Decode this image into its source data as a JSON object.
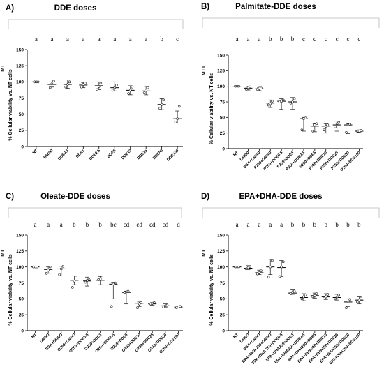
{
  "chart_data": [
    {
      "type": "scatter",
      "panel_label": "A)",
      "title": "DDE doses",
      "ylabel": "% Cellular viability vs. NT cells",
      "ylabel_prefix": "MTT",
      "ylim": [
        0,
        150
      ],
      "yticks": [
        0,
        25,
        50,
        75,
        100,
        125,
        150
      ],
      "categories": [
        "NT",
        "DMSO",
        "DDE0.5",
        "DDE1",
        "DDE2.5",
        "DDE5",
        "DDE10",
        "DDE25",
        "DDE50",
        "DDE100"
      ],
      "significance_letters": [
        "a",
        "a",
        "a",
        "a",
        "a",
        "a",
        "a",
        "a",
        "b",
        "c"
      ],
      "means": [
        100,
        96,
        96,
        95,
        94,
        91,
        87,
        86,
        65,
        43
      ],
      "errors": [
        [
          100,
          101
        ],
        [
          92,
          100
        ],
        [
          90,
          103
        ],
        [
          91,
          99
        ],
        [
          88,
          100
        ],
        [
          86,
          100
        ],
        [
          80,
          94
        ],
        [
          80,
          93
        ],
        [
          57,
          74
        ],
        [
          36,
          55
        ]
      ],
      "points": [
        [
          100,
          100,
          100
        ],
        [
          91,
          97,
          101
        ],
        [
          92,
          96,
          100
        ],
        [
          92,
          96,
          98
        ],
        [
          88,
          93,
          98
        ],
        [
          87,
          91,
          95
        ],
        [
          82,
          87,
          92
        ],
        [
          83,
          87,
          91
        ],
        [
          59,
          65,
          72
        ],
        [
          38,
          43,
          62
        ]
      ],
      "grid": false
    },
    {
      "type": "scatter",
      "panel_label": "B)",
      "title": "Palmitate-DDE doses",
      "ylabel": "% Cellular viability vs. NT cells",
      "ylabel_prefix": "MTT",
      "ylim": [
        0,
        150
      ],
      "yticks": [
        0,
        25,
        50,
        75,
        100,
        125,
        150
      ],
      "categories": [
        "NT",
        "DMSO",
        "BSA+DMSO",
        "P250+DMSO",
        "P250+DDE0.5",
        "P250+DDE1",
        "P250+DDE2.5",
        "P250+DDE5",
        "P250+DDE10",
        "P250+DDE25",
        "P250+DDE50",
        "P250+DDE100"
      ],
      "significance_letters": [
        "a",
        "a",
        "a",
        "b",
        "b",
        "b",
        "c",
        "c",
        "c",
        "c",
        "c",
        "c"
      ],
      "means": [
        100,
        97,
        96,
        73,
        76,
        75,
        48,
        36,
        36,
        38,
        38,
        28
      ],
      "errors": [
        [
          100,
          100
        ],
        [
          94,
          100
        ],
        [
          93,
          98
        ],
        [
          66,
          78
        ],
        [
          63,
          80
        ],
        [
          63,
          82
        ],
        [
          28,
          50
        ],
        [
          27,
          40
        ],
        [
          25,
          40
        ],
        [
          28,
          44
        ],
        [
          24,
          40
        ],
        [
          26,
          30
        ]
      ],
      "points": [
        [
          100,
          100,
          100
        ],
        [
          95,
          98,
          99
        ],
        [
          95,
          97,
          97
        ],
        [
          70,
          72,
          76
        ],
        [
          75,
          76,
          78
        ],
        [
          73,
          75,
          80
        ],
        [
          30,
          48,
          49
        ],
        [
          28,
          38,
          40
        ],
        [
          30,
          36,
          38
        ],
        [
          35,
          40,
          42
        ],
        [
          26,
          38,
          39
        ],
        [
          28,
          28,
          29
        ]
      ],
      "grid": false
    },
    {
      "type": "scatter",
      "panel_label": "C)",
      "title": "Oleate-DDE doses",
      "ylabel": "% Cellular viability vs. NT cells",
      "ylabel_prefix": "MTT",
      "ylim": [
        0,
        150
      ],
      "yticks": [
        0,
        25,
        50,
        75,
        100,
        125,
        150
      ],
      "categories": [
        "NT",
        "DMSO",
        "BSA+DMSO",
        "O250+DMSO",
        "O250+DDE0.5",
        "O250+DDE1",
        "O250+DDE2.5",
        "O250+DDE5",
        "O250+DDE10",
        "O250+DDE25",
        "O250+DDE50",
        "O250+DDE100"
      ],
      "significance_letters": [
        "a",
        "a",
        "a",
        "b",
        "b",
        "b",
        "bc",
        "cd",
        "cd",
        "cd",
        "cd",
        "d"
      ],
      "means": [
        100,
        96,
        97,
        79,
        78,
        79,
        73,
        60,
        43,
        42,
        39,
        37
      ],
      "errors": [
        [
          100,
          100
        ],
        [
          90,
          100
        ],
        [
          86,
          101
        ],
        [
          72,
          86
        ],
        [
          70,
          84
        ],
        [
          72,
          85
        ],
        [
          50,
          76
        ],
        [
          42,
          62
        ],
        [
          38,
          45
        ],
        [
          40,
          44
        ],
        [
          37,
          42
        ],
        [
          36,
          39
        ]
      ],
      "points": [
        [
          100,
          100,
          100
        ],
        [
          90,
          95,
          100
        ],
        [
          88,
          97,
          101
        ],
        [
          68,
          78,
          84
        ],
        [
          76,
          79,
          80
        ],
        [
          80,
          81,
          84
        ],
        [
          38,
          73,
          75
        ],
        [
          60,
          61,
          62
        ],
        [
          36,
          42,
          44
        ],
        [
          42,
          43,
          44
        ],
        [
          37,
          39,
          40
        ],
        [
          36,
          37,
          38
        ]
      ],
      "grid": false
    },
    {
      "type": "scatter",
      "panel_label": "D)",
      "title": "EPA+DHA-DDE doses",
      "ylabel": "% Cellular viability vs. NT cells",
      "ylabel_prefix": "MTT",
      "ylim": [
        0,
        150
      ],
      "yticks": [
        0,
        25,
        50,
        75,
        100,
        125,
        150
      ],
      "categories": [
        "NT",
        "DMSO",
        "BSA+DMSO",
        "EPA+DHA 250+DMSO",
        "EPA+DHA 250+DDE0.5",
        "EPA+DHA250+DDE1",
        "EPA+DHA250+DDE2.5",
        "EPA+DHA250+DDE5",
        "EPA+DHA250+DDE10",
        "EPA+DHA250+DDE25",
        "EPA+DHA250+DDE50",
        "EPA+DHA250+DDE100"
      ],
      "significance_letters": [
        "a",
        "a",
        "a",
        "a",
        "a",
        "b",
        "b",
        "b",
        "b",
        "b",
        "b",
        "b"
      ],
      "means": [
        100,
        98,
        91,
        100,
        99,
        59,
        52,
        55,
        53,
        52,
        45,
        48
      ],
      "errors": [
        [
          100,
          100
        ],
        [
          96,
          102
        ],
        [
          88,
          95
        ],
        [
          88,
          112
        ],
        [
          85,
          110
        ],
        [
          57,
          64
        ],
        [
          47,
          58
        ],
        [
          51,
          59
        ],
        [
          49,
          58
        ],
        [
          48,
          57
        ],
        [
          38,
          50
        ],
        [
          42,
          53
        ]
      ],
      "points": [
        [
          100,
          100,
          100
        ],
        [
          97,
          99,
          101
        ],
        [
          89,
          91,
          94
        ],
        [
          84,
          100,
          110
        ],
        [
          85,
          100,
          108
        ],
        [
          58,
          60,
          62
        ],
        [
          50,
          53,
          56
        ],
        [
          53,
          55,
          58
        ],
        [
          51,
          53,
          57
        ],
        [
          50,
          53,
          56
        ],
        [
          36,
          45,
          49
        ],
        [
          45,
          48,
          51
        ]
      ],
      "grid": false
    }
  ]
}
